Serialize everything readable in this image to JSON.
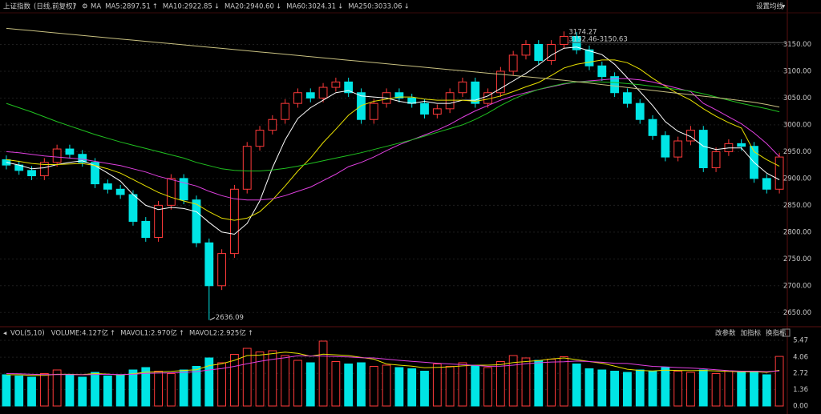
{
  "controls": {
    "settings": "设置均线",
    "volume_buttons": [
      "改参数",
      "加指标",
      "换指标"
    ]
  },
  "chart_data": [
    {
      "type": "candlestick",
      "title": "上证指数",
      "subtitle": "(日线,前复权)",
      "legend_label": "MA",
      "ylim": [
        2628,
        3203
      ],
      "yticks": [
        {
          "value": 2650,
          "label": "2650.00"
        },
        {
          "value": 2700,
          "label": "2700.00"
        },
        {
          "value": 2750,
          "label": "2750.00"
        },
        {
          "value": 2800,
          "label": "2800.00"
        },
        {
          "value": 2850,
          "label": "2850.00"
        },
        {
          "value": 2900,
          "label": "2900.00"
        },
        {
          "value": 2950,
          "label": "2950.00"
        },
        {
          "value": 3000,
          "label": "3000.00"
        },
        {
          "value": 3050,
          "label": "3050.00"
        },
        {
          "value": 3100,
          "label": "3100.00"
        },
        {
          "value": 3150,
          "label": "3150.00"
        }
      ],
      "grid": true,
      "up_color": "#ff3a3a",
      "down_color": "#00e5e5",
      "open": [
        2935,
        2925,
        2915,
        2905,
        2930,
        2955,
        2945,
        2930,
        2890,
        2880,
        2870,
        2820,
        2790,
        2850,
        2900,
        2860,
        2780,
        2700,
        2760,
        2880,
        2960,
        2990,
        3010,
        3040,
        3060,
        3050,
        3070,
        3080,
        3060,
        3010,
        3040,
        3060,
        3050,
        3040,
        3020,
        3030,
        3060,
        3080,
        3040,
        3060,
        3100,
        3130,
        3150,
        3120,
        3150,
        3165,
        3140,
        3110,
        3090,
        3060,
        3040,
        3010,
        2980,
        2940,
        2970,
        2990,
        2920,
        2950,
        2965,
        2960,
        2900,
        2880
      ],
      "high": [
        2943,
        2933,
        2923,
        2938,
        2963,
        2963,
        2953,
        2938,
        2898,
        2888,
        2878,
        2828,
        2858,
        2908,
        2908,
        2868,
        2788,
        2768,
        2888,
        2968,
        2998,
        3018,
        3048,
        3068,
        3068,
        3078,
        3088,
        3088,
        3068,
        3048,
        3068,
        3068,
        3058,
        3048,
        3038,
        3068,
        3088,
        3088,
        3068,
        3108,
        3138,
        3158,
        3158,
        3158,
        3174.27,
        3173,
        3148,
        3118,
        3098,
        3068,
        3048,
        3018,
        2988,
        2978,
        2998,
        2998,
        2958,
        2973,
        2973,
        2968,
        2908,
        2948
      ],
      "low": [
        2917,
        2907,
        2897,
        2897,
        2922,
        2937,
        2922,
        2882,
        2872,
        2862,
        2812,
        2782,
        2782,
        2842,
        2852,
        2772,
        2636.09,
        2692,
        2752,
        2872,
        2952,
        2982,
        3002,
        3032,
        3042,
        3042,
        3062,
        3052,
        3002,
        3002,
        3032,
        3042,
        3032,
        3012,
        3012,
        3022,
        3052,
        3032,
        3032,
        3052,
        3092,
        3122,
        3112,
        3112,
        3142,
        3132,
        3102,
        3082,
        3052,
        3032,
        3002,
        2972,
        2932,
        2932,
        2962,
        2912,
        2912,
        2942,
        2952,
        2892,
        2872,
        2872
      ],
      "close": [
        2925,
        2915,
        2905,
        2930,
        2955,
        2945,
        2930,
        2890,
        2880,
        2870,
        2820,
        2790,
        2850,
        2900,
        2860,
        2780,
        2700,
        2760,
        2880,
        2960,
        2990,
        3010,
        3040,
        3060,
        3050,
        3070,
        3080,
        3060,
        3010,
        3040,
        3060,
        3050,
        3040,
        3020,
        3030,
        3060,
        3080,
        3040,
        3060,
        3100,
        3130,
        3150,
        3120,
        3150,
        3165,
        3140,
        3110,
        3090,
        3060,
        3040,
        3010,
        2980,
        2940,
        2970,
        2990,
        2920,
        2950,
        2965,
        2960,
        2900,
        2880,
        2940
      ],
      "lines": [
        {
          "name": "MA5:2897.51",
          "trend": "↑",
          "color": "#ffffff",
          "values": [
            2930,
            2925,
            2918,
            2920,
            2926,
            2930,
            2933,
            2924,
            2910,
            2895,
            2870,
            2850,
            2842,
            2846,
            2844,
            2838,
            2818,
            2800,
            2796,
            2816,
            2858,
            2920,
            2972,
            3012,
            3032,
            3046,
            3060,
            3064,
            3054,
            3052,
            3050,
            3044,
            3040,
            3044,
            3040,
            3040,
            3046,
            3046,
            3054,
            3068,
            3082,
            3096,
            3112,
            3130,
            3143,
            3145,
            3138,
            3131,
            3113,
            3088,
            3062,
            3036,
            3006,
            2988,
            2978,
            2960,
            2954,
            2957,
            2957,
            2930,
            2910,
            2897.51
          ]
        },
        {
          "name": "MA10:2922.85",
          "trend": "↓",
          "color": "#e8e000",
          "values": [
            2935,
            2932,
            2928,
            2926,
            2926,
            2927,
            2928,
            2924,
            2918,
            2910,
            2898,
            2886,
            2874,
            2865,
            2858,
            2852,
            2838,
            2826,
            2822,
            2826,
            2838,
            2860,
            2886,
            2914,
            2938,
            2967,
            2992,
            3018,
            3036,
            3044,
            3048,
            3052,
            3052,
            3048,
            3046,
            3046,
            3046,
            3044,
            3048,
            3054,
            3062,
            3071,
            3079,
            3092,
            3106,
            3113,
            3117,
            3121,
            3121,
            3116,
            3104,
            3087,
            3072,
            3058,
            3046,
            3030,
            3016,
            3004,
            2994,
            2950,
            2935,
            2922.85
          ]
        },
        {
          "name": "MA20:2940.60",
          "trend": "↓",
          "color": "#e040e0",
          "values": [
            2950,
            2948,
            2945,
            2942,
            2940,
            2938,
            2936,
            2932,
            2928,
            2924,
            2918,
            2912,
            2904,
            2898,
            2892,
            2886,
            2876,
            2868,
            2862,
            2860,
            2860,
            2862,
            2868,
            2876,
            2884,
            2896,
            2908,
            2922,
            2930,
            2940,
            2952,
            2963,
            2972,
            2981,
            2990,
            3001,
            3014,
            3026,
            3036,
            3046,
            3054,
            3060,
            3066,
            3071,
            3076,
            3080,
            3082,
            3084,
            3086,
            3086,
            3084,
            3080,
            3074,
            3068,
            3062,
            3040,
            3028,
            3015,
            3002,
            2985,
            2965,
            2940.6
          ]
        },
        {
          "name": "MA60:3024.31",
          "trend": "↓",
          "color": "#20c020",
          "values": [
            3040,
            3032,
            3024,
            3015,
            3006,
            2998,
            2990,
            2982,
            2975,
            2968,
            2962,
            2956,
            2950,
            2944,
            2938,
            2930,
            2924,
            2918,
            2915,
            2914,
            2914,
            2916,
            2919,
            2923,
            2928,
            2933,
            2938,
            2943,
            2948,
            2954,
            2960,
            2966,
            2972,
            2979,
            2986,
            2993,
            3000,
            3010,
            3022,
            3036,
            3048,
            3058,
            3066,
            3072,
            3077,
            3080,
            3081,
            3080,
            3079,
            3077,
            3075,
            3072,
            3069,
            3066,
            3063,
            3058,
            3052,
            3046,
            3040,
            3035,
            3030,
            3024.31
          ]
        },
        {
          "name": "MA250:3033.06",
          "trend": "↓",
          "color": "#c8c080",
          "values": [
            3180,
            3177.8,
            3175.6,
            3173.4,
            3171.2,
            3169,
            3166.8,
            3164.6,
            3162.4,
            3160.2,
            3158,
            3155.8,
            3153.6,
            3151.4,
            3149.2,
            3147,
            3144.8,
            3142.6,
            3140.4,
            3138.2,
            3136,
            3133.8,
            3131.6,
            3129.4,
            3127.2,
            3125,
            3122.8,
            3120.6,
            3118.4,
            3116.2,
            3114,
            3111.8,
            3109.6,
            3107.4,
            3105.2,
            3103,
            3100.8,
            3098.6,
            3096.4,
            3094.2,
            3092,
            3089.8,
            3087.6,
            3085.4,
            3083.2,
            3080.5,
            3077.8,
            3075.1,
            3072.4,
            3069.7,
            3067,
            3064.3,
            3061.6,
            3058.9,
            3056.2,
            3053.5,
            3050.8,
            3048,
            3045,
            3042,
            3038,
            3033.06
          ]
        }
      ],
      "annotations": [
        "3174.27",
        "3152.46-3150.63",
        "2636.09"
      ]
    },
    {
      "type": "bar",
      "title": "VOL(5,10)",
      "ylim": [
        0,
        5.8
      ],
      "yticks": [
        {
          "value": 0,
          "label": "0.00"
        },
        {
          "value": 1.36,
          "label": "1.36"
        },
        {
          "value": 2.72,
          "label": "2.72"
        },
        {
          "value": 4.06,
          "label": "4.06"
        },
        {
          "value": 5.47,
          "label": "5.47"
        }
      ],
      "grid": true,
      "series": [
        {
          "name": "VOLUME:4.127亿",
          "trend": "↑",
          "color": "#cccccc",
          "values": [
            2.6,
            2.5,
            2.4,
            2.7,
            3.0,
            2.6,
            2.4,
            2.8,
            2.5,
            2.6,
            3.0,
            3.2,
            2.9,
            2.7,
            3.0,
            3.3,
            4.0,
            3.6,
            4.3,
            4.8,
            4.5,
            4.6,
            4.2,
            3.8,
            3.6,
            5.4,
            3.7,
            3.5,
            3.6,
            3.3,
            3.4,
            3.2,
            3.1,
            2.9,
            3.5,
            3.3,
            3.6,
            3.4,
            3.2,
            3.7,
            4.2,
            4.0,
            3.8,
            3.9,
            4.1,
            3.5,
            3.1,
            3.0,
            2.9,
            2.8,
            3.0,
            2.9,
            3.2,
            2.9,
            2.8,
            3.0,
            2.7,
            2.9,
            2.8,
            2.9,
            2.6,
            4.127
          ]
        },
        {
          "name": "MAVOL1:2.970亿",
          "trend": "↑",
          "color": "#e8e000",
          "values": [
            2.6,
            2.6,
            2.55,
            2.55,
            2.64,
            2.64,
            2.62,
            2.7,
            2.66,
            2.58,
            2.68,
            2.82,
            2.84,
            2.88,
            2.96,
            3.02,
            3.36,
            3.52,
            3.8,
            4.2,
            4.24,
            4.36,
            4.48,
            4.38,
            4.14,
            4.32,
            4.26,
            4.2,
            4.04,
            3.9,
            3.5,
            3.4,
            3.32,
            3.18,
            3.22,
            3.26,
            3.34,
            3.4,
            3.4,
            3.44,
            3.62,
            3.7,
            3.78,
            3.92,
            4.0,
            3.86,
            3.7,
            3.56,
            3.32,
            3.06,
            2.96,
            2.92,
            2.98,
            2.96,
            2.94,
            2.96,
            2.92,
            2.88,
            2.84,
            2.86,
            2.8,
            2.97
          ]
        },
        {
          "name": "MAVOL2:2.925亿",
          "trend": "↑",
          "color": "#e040e0",
          "values": [
            2.7,
            2.68,
            2.64,
            2.62,
            2.62,
            2.62,
            2.6,
            2.62,
            2.64,
            2.62,
            2.64,
            2.72,
            2.74,
            2.76,
            2.8,
            2.86,
            3.0,
            3.12,
            3.3,
            3.52,
            3.72,
            3.88,
            4.02,
            4.18,
            4.16,
            4.16,
            4.12,
            4.08,
            4.02,
            4.0,
            3.9,
            3.8,
            3.72,
            3.64,
            3.56,
            3.5,
            3.44,
            3.38,
            3.3,
            3.32,
            3.4,
            3.52,
            3.6,
            3.66,
            3.68,
            3.74,
            3.7,
            3.64,
            3.56,
            3.54,
            3.42,
            3.3,
            3.26,
            3.2,
            3.16,
            3.1,
            3.02,
            2.94,
            2.9,
            2.9,
            2.86,
            2.925
          ]
        }
      ]
    }
  ]
}
